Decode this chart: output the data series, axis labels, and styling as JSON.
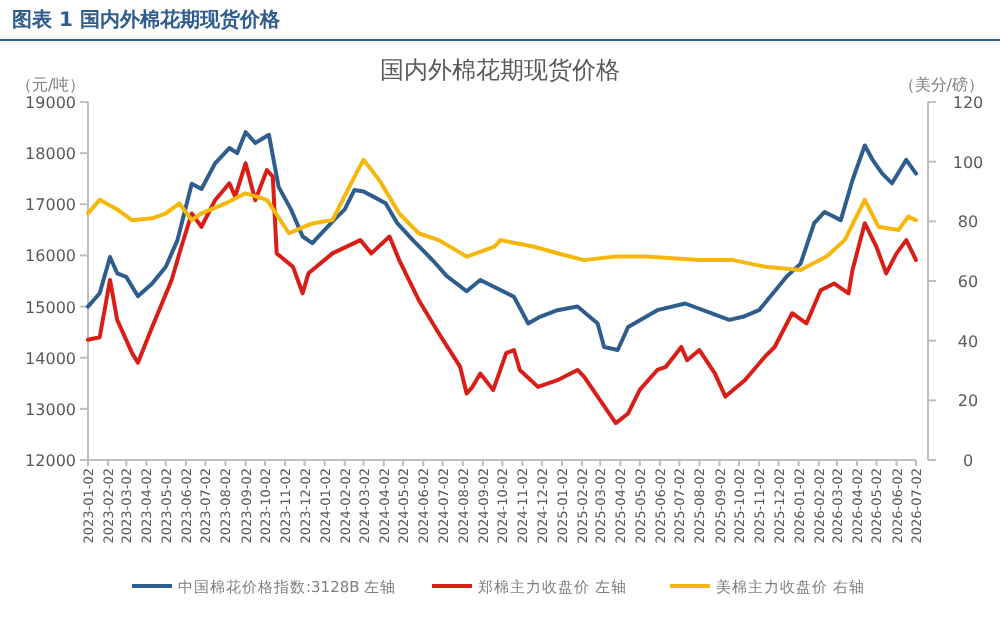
{
  "chart_data": {
    "type": "line",
    "title": "国内外棉花期现货价格",
    "annotations": [
      "图表 1  国内外棉花期现货价格"
    ],
    "ylabel": "（元/吨）",
    "y2label": "（美分/磅）",
    "xlim": [
      "2023-01-02",
      "2026-07-02"
    ],
    "xticks": [
      "2023-01-02",
      "2023-02-02",
      "2023-03-02",
      "2023-04-02",
      "2023-05-02",
      "2023-06-02",
      "2023-07-02",
      "2023-08-02",
      "2023-09-02",
      "2023-10-02",
      "2023-11-02",
      "2023-12-02",
      "2024-01-02",
      "2024-02-02",
      "2024-03-02",
      "2024-04-02",
      "2024-05-02",
      "2024-06-02",
      "2024-07-02",
      "2024-08-02",
      "2024-09-02",
      "2024-10-02",
      "2024-11-02",
      "2024-12-02",
      "2025-01-02",
      "2025-02-02",
      "2025-03-02",
      "2025-04-02",
      "2025-05-02",
      "2025-06-02",
      "2025-07-02",
      "2025-08-02",
      "2025-09-02",
      "2025-10-02",
      "2025-11-02",
      "2025-12-02",
      "2026-01-02",
      "2026-02-02",
      "2026-03-02",
      "2026-04-02",
      "2026-05-02",
      "2026-06-02",
      "2026-07-02"
    ],
    "ylim": [
      12000,
      19000
    ],
    "yticks": [
      12000,
      13000,
      14000,
      15000,
      16000,
      17000,
      18000,
      19000
    ],
    "y2lim": [
      0,
      120
    ],
    "y2ticks": [
      0,
      20,
      40,
      60,
      80,
      100,
      120
    ],
    "legend": "bottom",
    "series": [
      {
        "name": "中国棉花价格指数:3128B 左轴",
        "color": "#2f5d8e",
        "axis": "y",
        "x": [
          "2023-01-02",
          "2023-01-20",
          "2023-02-05",
          "2023-02-16",
          "2023-03-02",
          "2023-03-20",
          "2023-04-11",
          "2023-05-02",
          "2023-05-20",
          "2023-06-11",
          "2023-06-26",
          "2023-07-17",
          "2023-08-08",
          "2023-08-20",
          "2023-09-02",
          "2023-09-17",
          "2023-10-08",
          "2023-10-23",
          "2023-11-11",
          "2023-11-29",
          "2023-12-14",
          "2024-01-02",
          "2024-01-17",
          "2024-02-02",
          "2024-02-17",
          "2024-03-02",
          "2024-03-17",
          "2024-04-05",
          "2024-04-23",
          "2024-05-17",
          "2024-06-17",
          "2024-07-08",
          "2024-08-08",
          "2024-08-29",
          "2024-10-20",
          "2024-11-11",
          "2024-11-29",
          "2024-12-26",
          "2025-01-26",
          "2025-02-26",
          "2025-03-08",
          "2025-03-29",
          "2025-04-14",
          "2025-05-29",
          "2025-07-11",
          "2025-08-20",
          "2025-09-17",
          "2025-10-08",
          "2025-11-02",
          "2025-12-14",
          "2026-01-05",
          "2026-01-26",
          "2026-02-11",
          "2026-03-08",
          "2026-03-26",
          "2026-04-14",
          "2026-04-26",
          "2026-05-11",
          "2026-05-26",
          "2026-06-17",
          "2026-07-02"
        ],
        "values": [
          15000,
          15260,
          15970,
          15650,
          15580,
          15200,
          15450,
          15780,
          16300,
          17400,
          17300,
          17800,
          18100,
          18000,
          18410,
          18200,
          18360,
          17340,
          16900,
          16370,
          16240,
          16500,
          16700,
          16900,
          17280,
          17250,
          17150,
          17020,
          16630,
          16300,
          15900,
          15600,
          15300,
          15520,
          15190,
          14670,
          14800,
          14930,
          15000,
          14670,
          14210,
          14150,
          14600,
          14930,
          15060,
          14870,
          14740,
          14800,
          14930,
          15580,
          15840,
          16630,
          16850,
          16690,
          17470,
          18150,
          17870,
          17600,
          17410,
          17870,
          17600
        ]
      },
      {
        "name": "郑棉主力收盘价 左轴",
        "color": "#d91e18",
        "axis": "y",
        "x": [
          "2023-01-02",
          "2023-01-20",
          "2023-02-05",
          "2023-02-16",
          "2023-03-11",
          "2023-03-20",
          "2023-04-11",
          "2023-05-11",
          "2023-05-26",
          "2023-06-11",
          "2023-06-26",
          "2023-07-17",
          "2023-08-08",
          "2023-08-17",
          "2023-09-02",
          "2023-09-17",
          "2023-10-05",
          "2023-10-14",
          "2023-10-20",
          "2023-11-14",
          "2023-11-29",
          "2023-12-08",
          "2024-01-14",
          "2024-02-26",
          "2024-03-14",
          "2024-04-11",
          "2024-04-26",
          "2024-05-26",
          "2024-06-26",
          "2024-07-29",
          "2024-08-08",
          "2024-08-17",
          "2024-08-29",
          "2024-09-18",
          "2024-10-08",
          "2024-10-20",
          "2024-10-29",
          "2024-11-26",
          "2024-12-26",
          "2025-01-26",
          "2025-02-05",
          "2025-03-26",
          "2025-04-14",
          "2025-05-02",
          "2025-05-29",
          "2025-06-11",
          "2025-07-05",
          "2025-07-14",
          "2025-08-02",
          "2025-08-26",
          "2025-09-11",
          "2025-10-11",
          "2025-11-11",
          "2025-11-26",
          "2025-12-23",
          "2026-01-14",
          "2026-02-05",
          "2026-02-26",
          "2026-03-20",
          "2026-03-26",
          "2026-04-14",
          "2026-05-02",
          "2026-05-17",
          "2026-06-02",
          "2026-06-17",
          "2026-07-02"
        ],
        "values": [
          14350,
          14400,
          15520,
          14740,
          14090,
          13900,
          14600,
          15520,
          16170,
          16820,
          16560,
          17080,
          17410,
          17150,
          17800,
          17080,
          17670,
          17540,
          16040,
          15780,
          15260,
          15650,
          16040,
          16300,
          16040,
          16370,
          15910,
          15130,
          14480,
          13820,
          13300,
          13430,
          13690,
          13370,
          14090,
          14150,
          13760,
          13430,
          13560,
          13760,
          13630,
          12720,
          12910,
          13370,
          13760,
          13820,
          14210,
          13950,
          14150,
          13690,
          13240,
          13560,
          14020,
          14210,
          14870,
          14670,
          15320,
          15450,
          15260,
          15710,
          16630,
          16170,
          15650,
          16040,
          16300,
          15910
        ]
      },
      {
        "name": "美棉主力收盘价 右轴",
        "color": "#f5b80a",
        "axis": "y2",
        "x": [
          "2023-01-02",
          "2023-01-20",
          "2023-02-16",
          "2023-03-11",
          "2023-04-11",
          "2023-05-02",
          "2023-05-23",
          "2023-06-11",
          "2023-06-26",
          "2023-08-02",
          "2023-09-02",
          "2023-10-05",
          "2023-11-08",
          "2023-12-14",
          "2024-01-14",
          "2024-02-17",
          "2024-03-02",
          "2024-03-26",
          "2024-04-26",
          "2024-05-26",
          "2024-06-26",
          "2024-08-08",
          "2024-09-20",
          "2024-09-29",
          "2024-11-20",
          "2024-12-26",
          "2025-02-05",
          "2025-03-26",
          "2025-05-11",
          "2025-08-02",
          "2025-09-23",
          "2025-11-11",
          "2026-01-05",
          "2026-02-14",
          "2026-03-14",
          "2026-04-14",
          "2026-05-05",
          "2026-06-05",
          "2026-06-20",
          "2026-07-02"
        ],
        "values": [
          82.7,
          87.2,
          84,
          80.4,
          81,
          82.7,
          86.0,
          80.4,
          82.7,
          86.0,
          89.4,
          87.2,
          76.0,
          79.3,
          80.4,
          95.0,
          100.6,
          93.9,
          82.7,
          76.0,
          73.7,
          68.2,
          71.5,
          73.7,
          71.5,
          69.3,
          67.0,
          68.2,
          68.2,
          67.0,
          67.0,
          64.8,
          63.7,
          68.2,
          73.7,
          87.2,
          78.2,
          77.1,
          81.6,
          80.4
        ]
      }
    ]
  }
}
